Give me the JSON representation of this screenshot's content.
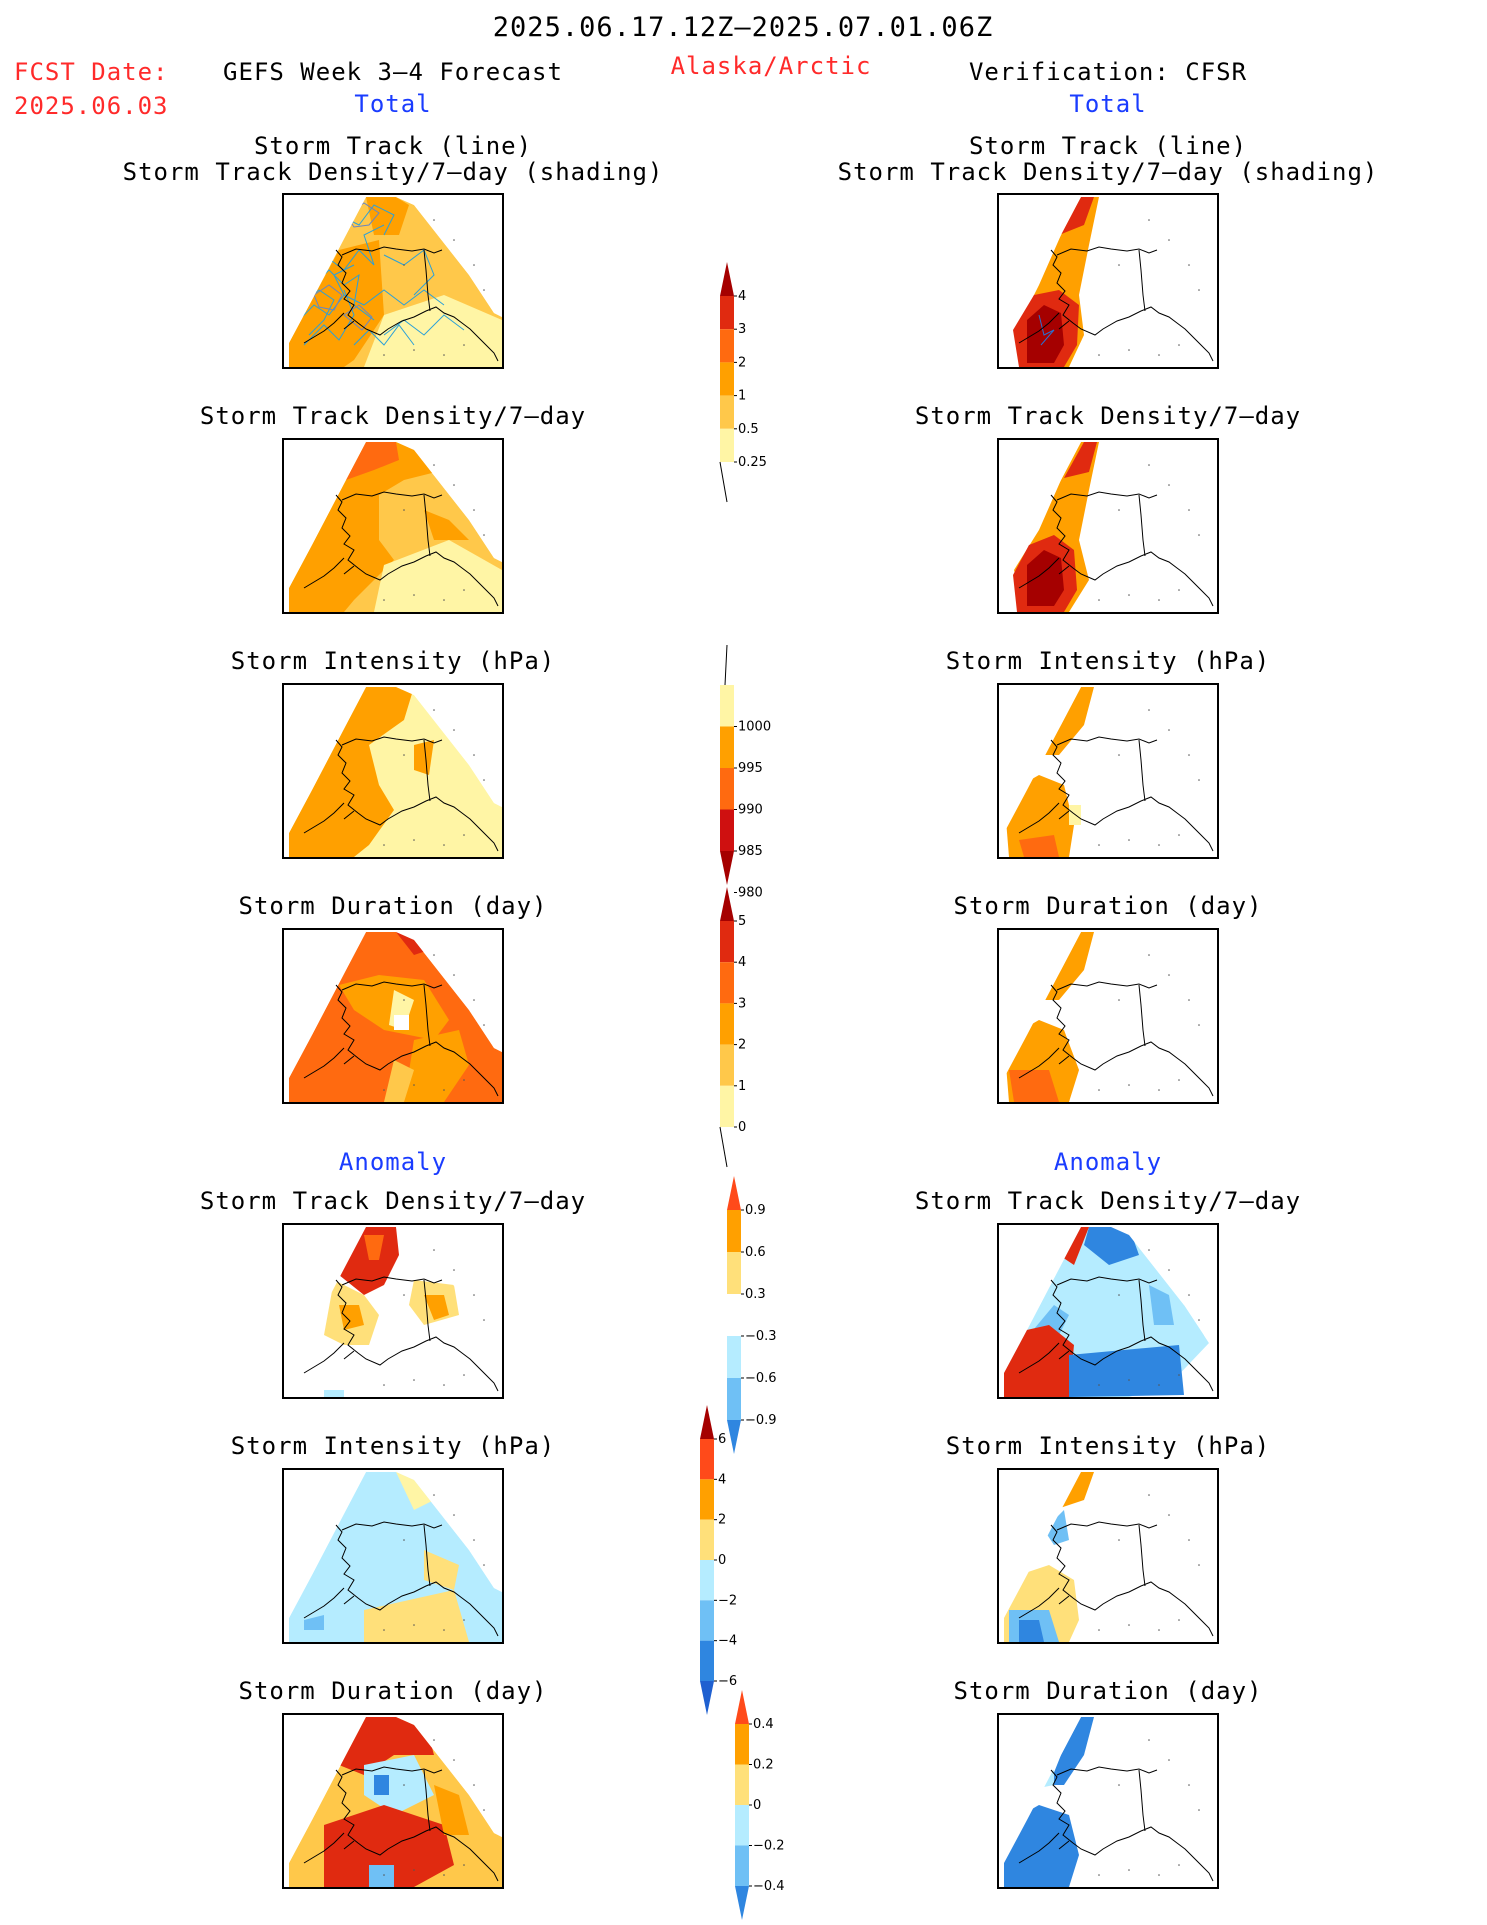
{
  "header": {
    "period": "2025.06.17.12Z–2025.07.01.06Z",
    "fcst_label": "FCST Date:",
    "fcst_date": "2025.06.03",
    "left_title": "GEFS Week 3–4 Forecast",
    "region": "Alaska/Arctic",
    "right_title": "Verification: CFSR",
    "left_total": "Total",
    "right_total": "Total",
    "left_anomaly": "Anomaly",
    "right_anomaly": "Anomaly"
  },
  "panels": {
    "track_line_title": "Storm Track (line)",
    "track_shading_title": "Storm Track Density/7–day (shading)",
    "density_title": "Storm Track Density/7–day",
    "intensity_title": "Storm Intensity (hPa)",
    "duration_title": "Storm Duration (day)"
  },
  "colorbars": {
    "density_total": {
      "ticks": [
        "4",
        "3",
        "2",
        "1",
        "0.5",
        "0.25"
      ],
      "colors": [
        "#a50000",
        "#e02a10",
        "#ff6a10",
        "#ffa000",
        "#ffc84a",
        "#fff5a5"
      ]
    },
    "intensity_total": {
      "ticks": [
        "1000",
        "995",
        "990",
        "985",
        "980"
      ],
      "colors": [
        "#fff5a5",
        "#ffa000",
        "#ff6a10",
        "#cf1010",
        "#a50000"
      ]
    },
    "duration_total": {
      "ticks": [
        "5",
        "4",
        "3",
        "2",
        "1",
        "0"
      ],
      "colors": [
        "#a50000",
        "#e02a10",
        "#ff6a10",
        "#ffa000",
        "#ffc84a",
        "#fff5a5"
      ]
    },
    "density_anom": {
      "ticks": [
        "0.9",
        "0.6",
        "0.3",
        "−0.3",
        "−0.6",
        "−0.9"
      ],
      "colors": [
        "#ff4a1a",
        "#ffa000",
        "#ffe07a",
        "#ffffff",
        "#b5ecff",
        "#6fc0f5",
        "#2f86e0"
      ]
    },
    "intensity_anom": {
      "ticks": [
        "6",
        "4",
        "2",
        "0",
        "−2",
        "−4",
        "−6"
      ],
      "colors": [
        "#a50000",
        "#ff4a1a",
        "#ffa000",
        "#ffe07a",
        "#b5ecff",
        "#6fc0f5",
        "#2f86e0",
        "#1f60d0"
      ]
    },
    "duration_anom": {
      "ticks": [
        "0.4",
        "0.2",
        "0",
        "−0.2",
        "−0.4"
      ],
      "colors": [
        "#ff4a1a",
        "#ffa000",
        "#ffe07a",
        "#b5ecff",
        "#6fc0f5",
        "#2f86e0"
      ]
    }
  },
  "palette": {
    "lightyellow": "#fff5a5",
    "yellow": "#ffe07a",
    "lightorange": "#ffc84a",
    "orange": "#ffa000",
    "darkorange": "#ff6a10",
    "red": "#e02a10",
    "darkred": "#a50000",
    "lightblue": "#b5ecff",
    "midblue": "#6fc0f5",
    "blue": "#2f86e0",
    "darkblue": "#1f60d0"
  }
}
